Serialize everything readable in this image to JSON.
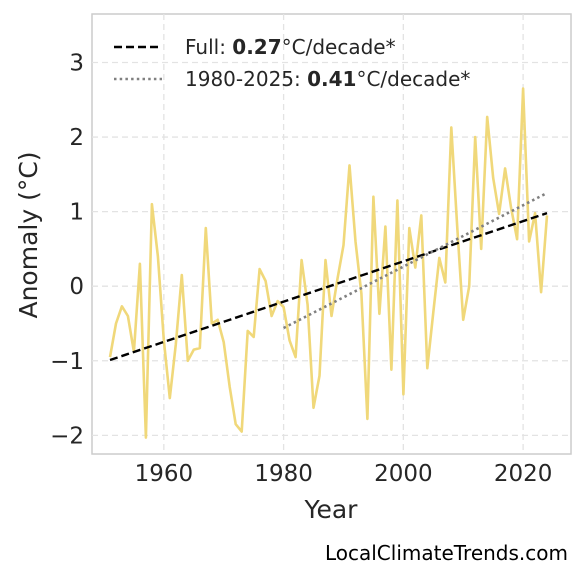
{
  "chart_data": {
    "type": "line",
    "xlabel": "Year",
    "ylabel": "Anomaly (°C)",
    "xlim": [
      1948,
      2028
    ],
    "ylim": [
      -2.25,
      3.65
    ],
    "xticks": [
      1960,
      1980,
      2000,
      2020
    ],
    "yticks": [
      -2,
      -1,
      0,
      1,
      2,
      3
    ],
    "ytick_labels": [
      "−2",
      "−1",
      "0",
      "1",
      "2",
      "3"
    ],
    "grid": true,
    "legend_position": "top-left",
    "series": [
      {
        "style": "solid",
        "color": "#f0d87a",
        "x": [
          1951,
          1952,
          1953,
          1954,
          1955,
          1956,
          1957,
          1958,
          1959,
          1960,
          1961,
          1962,
          1963,
          1964,
          1965,
          1966,
          1967,
          1968,
          1969,
          1970,
          1971,
          1972,
          1973,
          1974,
          1975,
          1976,
          1977,
          1978,
          1979,
          1980,
          1981,
          1982,
          1983,
          1984,
          1985,
          1986,
          1987,
          1988,
          1989,
          1990,
          1991,
          1992,
          1993,
          1994,
          1995,
          1996,
          1997,
          1998,
          1999,
          2000,
          2001,
          2002,
          2003,
          2004,
          2005,
          2006,
          2007,
          2008,
          2009,
          2010,
          2011,
          2012,
          2013,
          2014,
          2015,
          2016,
          2017,
          2018,
          2019,
          2020,
          2021,
          2022,
          2023,
          2024
        ],
        "y": [
          -0.95,
          -0.5,
          -0.27,
          -0.4,
          -0.88,
          0.3,
          -2.03,
          1.1,
          0.4,
          -0.72,
          -1.5,
          -0.78,
          0.15,
          -1.0,
          -0.85,
          -0.83,
          0.78,
          -0.5,
          -0.45,
          -0.75,
          -1.35,
          -1.85,
          -1.95,
          -0.6,
          -0.68,
          0.23,
          0.07,
          -0.4,
          -0.2,
          -0.28,
          -0.73,
          -0.95,
          0.35,
          -0.25,
          -1.63,
          -1.2,
          0.35,
          -0.4,
          0.1,
          0.55,
          1.62,
          0.6,
          -0.1,
          -1.78,
          1.2,
          -0.37,
          0.8,
          -1.12,
          1.15,
          -1.45,
          0.78,
          0.25,
          0.95,
          -1.1,
          -0.35,
          0.38,
          0.05,
          2.13,
          0.8,
          -0.45,
          0.0,
          2.0,
          0.5,
          2.27,
          1.45,
          0.97,
          1.58,
          1.05,
          0.63,
          2.65,
          0.6,
          0.98,
          -0.08,
          0.95
        ]
      },
      {
        "name": "Full: 0.27°C/decade*",
        "style": "dashed",
        "color": "#000000",
        "x": [
          1951,
          2024
        ],
        "y": [
          -0.99,
          0.98
        ]
      },
      {
        "name": "1980-2025: 0.41°C/decade*",
        "style": "dotted",
        "color": "#808080",
        "x": [
          1980,
          2024
        ],
        "y": [
          -0.56,
          1.25
        ]
      }
    ],
    "legend": [
      {
        "prefix": "Full: ",
        "value": "0.27",
        "suffix": "°C/decade*",
        "style": "dashed",
        "color": "#000000"
      },
      {
        "prefix": "1980-2025: ",
        "value": "0.41",
        "suffix": "°C/decade*",
        "style": "dotted",
        "color": "#808080"
      }
    ]
  },
  "credit": "LocalClimateTrends.com"
}
